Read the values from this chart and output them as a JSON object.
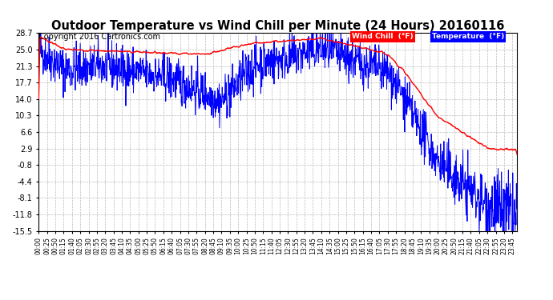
{
  "title": "Outdoor Temperature vs Wind Chill per Minute (24 Hours) 20160116",
  "copyright": "Copyright 2016 Cartronics.com",
  "yticks": [
    28.7,
    25.0,
    21.3,
    17.7,
    14.0,
    10.3,
    6.6,
    2.9,
    -0.8,
    -4.4,
    -8.1,
    -11.8,
    -15.5
  ],
  "ymin": -15.5,
  "ymax": 28.7,
  "wind_chill_color": "#FF0000",
  "temp_color": "#0000FF",
  "background_color": "#FFFFFF",
  "plot_background": "#FFFFFF",
  "grid_color": "#BBBBBB",
  "legend_wind_chill_bg": "#FF0000",
  "legend_temp_bg": "#0000FF",
  "legend_text_color": "#FFFFFF",
  "title_fontsize": 10.5,
  "copyright_fontsize": 7,
  "xtick_interval_minutes": 25,
  "total_minutes": 1440
}
